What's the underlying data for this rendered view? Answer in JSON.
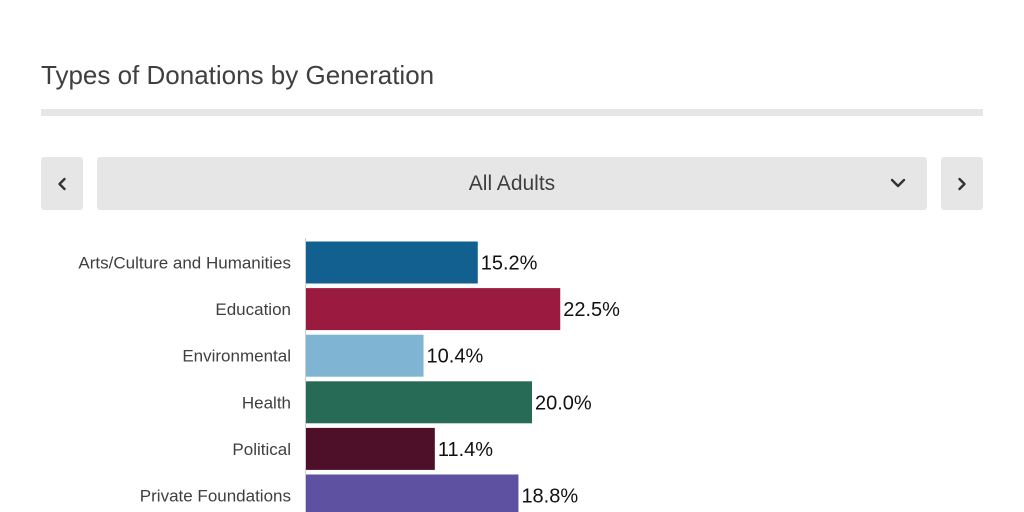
{
  "title": "Types of Donations by Generation",
  "selector": {
    "value": "All Adults",
    "prev_icon": "chevron-left-icon",
    "next_icon": "chevron-right-icon",
    "dropdown_icon": "chevron-down-icon"
  },
  "chart_data": {
    "type": "bar",
    "orientation": "horizontal",
    "title": "Types of Donations by Generation",
    "categories": [
      "Arts/Culture and Humanities",
      "Education",
      "Environmental",
      "Health",
      "Political",
      "Private Foundations"
    ],
    "values": [
      15.2,
      22.5,
      10.4,
      20.0,
      11.4,
      18.8
    ],
    "value_labels": [
      "15.2%",
      "22.5%",
      "10.4%",
      "20.0%",
      "11.4%",
      "18.8%"
    ],
    "colors": [
      "#12608f",
      "#9b1a40",
      "#7fb4d2",
      "#276a55",
      "#4d1028",
      "#5e51a1"
    ],
    "unit": "%",
    "xlim": [
      0,
      100
    ],
    "grid": false,
    "legend": "none"
  }
}
